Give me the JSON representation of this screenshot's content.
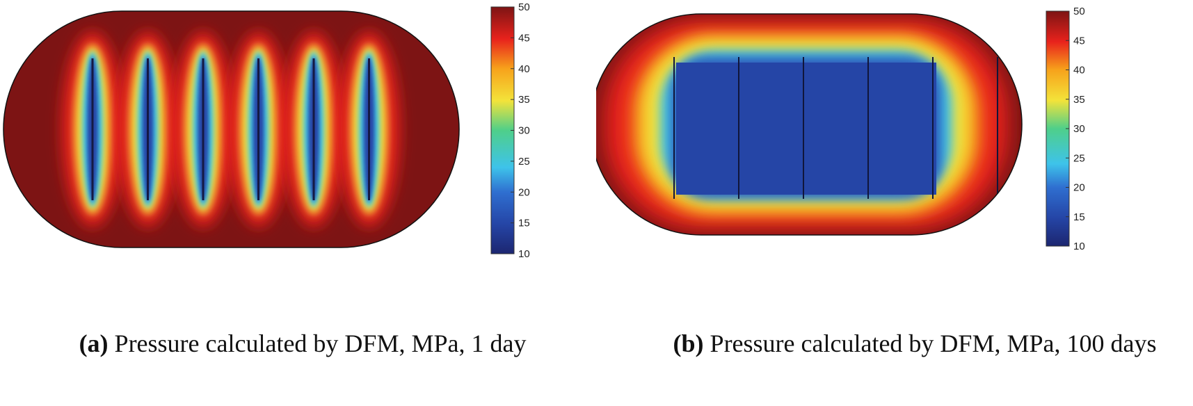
{
  "chart_data": [
    {
      "type": "heatmap",
      "panel_label": "(a)",
      "title": "Pressure calculated by DFM, MPa, 1 day",
      "quantity": "Pressure",
      "unit": "MPa",
      "time": "1 day",
      "method": "DFM",
      "colorbar": {
        "min": 10,
        "max": 50,
        "ticks": [
          50,
          45,
          40,
          35,
          30,
          25,
          20,
          15,
          10
        ],
        "colormap": "jet"
      },
      "domain_shape": "stadium",
      "fracture_count": 6,
      "background_value": 50,
      "fracture_value": 10
    },
    {
      "type": "heatmap",
      "panel_label": "(b)",
      "title": "Pressure calculated by DFM, MPa, 100 days",
      "quantity": "Pressure",
      "unit": "MPa",
      "time": "100 days",
      "method": "DFM",
      "colorbar": {
        "min": 10,
        "max": 50,
        "ticks": [
          50,
          45,
          40,
          35,
          30,
          25,
          20,
          15,
          10
        ],
        "colormap": "jet"
      },
      "domain_shape": "stadium",
      "fracture_count": 6,
      "boundary_value": 50,
      "interior_value": 12
    }
  ],
  "captions": {
    "a": {
      "label": "(a)",
      "text": "Pressure calculated by DFM, MPa, 1 day"
    },
    "b": {
      "label": "(b)",
      "text": "Pressure calculated by DFM, MPa, 100 days"
    }
  },
  "colors": {
    "dark_red": "#7d1414",
    "red": "#e8221c",
    "yellow": "#f3e33a",
    "cyan": "#3ec3ea",
    "blue": "#2545a6",
    "dark_blue": "#1c2670"
  }
}
